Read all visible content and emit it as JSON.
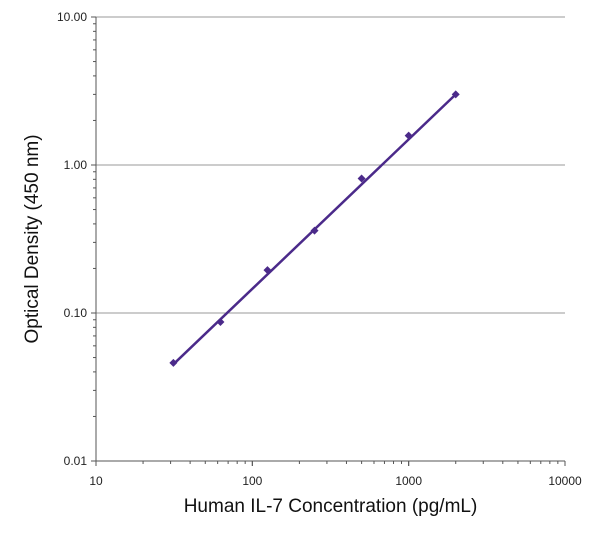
{
  "chart_data": {
    "type": "scatter",
    "title": "",
    "xlabel": "Human IL-7 Concentration (pg/mL)",
    "ylabel": "Optical Density (450 nm)",
    "x_scale": "log",
    "y_scale": "log",
    "xlim": [
      10,
      10000
    ],
    "ylim": [
      0.01,
      10
    ],
    "x_ticks": [
      10,
      100,
      1000,
      10000
    ],
    "x_tick_labels": [
      "10",
      "100",
      "1000",
      "10000"
    ],
    "y_ticks": [
      0.01,
      0.1,
      1,
      10
    ],
    "y_tick_labels": [
      "0.01",
      "0.10",
      "1.00",
      "10.00"
    ],
    "grid": "horizontal major gridlines",
    "legend": "none",
    "series": [
      {
        "color": "#4b2a8a",
        "marker": "diamond",
        "points": [
          {
            "x": 31.25,
            "y": 0.046
          },
          {
            "x": 62.5,
            "y": 0.087
          },
          {
            "x": 125,
            "y": 0.195
          },
          {
            "x": 250,
            "y": 0.36
          },
          {
            "x": 500,
            "y": 0.81
          },
          {
            "x": 1000,
            "y": 1.58
          },
          {
            "x": 2000,
            "y": 3.0
          }
        ],
        "fit_line": {
          "x": [
            31.25,
            2000
          ],
          "y": [
            0.045,
            3.0
          ]
        }
      }
    ]
  }
}
